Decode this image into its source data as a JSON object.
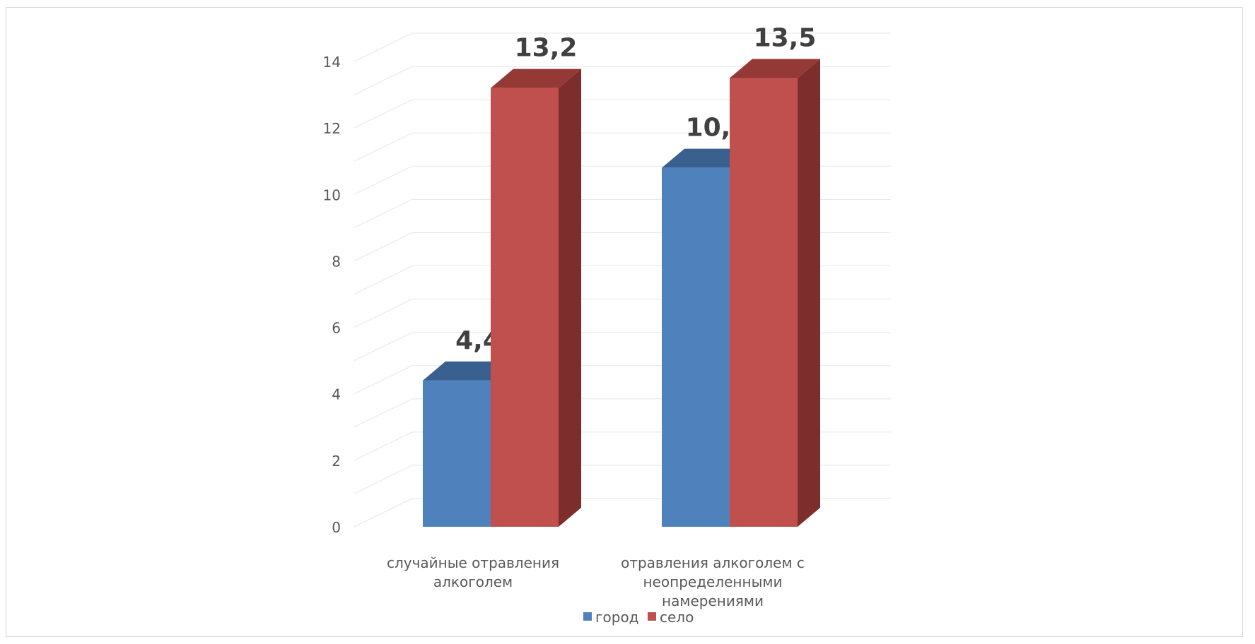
{
  "chart_data": {
    "type": "bar",
    "title": "",
    "xlabel": "",
    "ylabel": "",
    "ylim": [
      0,
      14
    ],
    "yticks": [
      0,
      2,
      4,
      6,
      8,
      10,
      12,
      14
    ],
    "grid": true,
    "legend_position": "bottom",
    "categories": [
      [
        "случайные отравления",
        "алкоголем"
      ],
      [
        "отравления алкоголем с",
        "неопределенными",
        "намерениями"
      ]
    ],
    "series": [
      {
        "name": "город",
        "values": [
          4.4,
          10.8
        ],
        "labels": [
          "4,4",
          "10,8"
        ],
        "color": "#4f81bd",
        "top_color": "#3a6090"
      },
      {
        "name": "село",
        "values": [
          13.2,
          13.5
        ],
        "labels": [
          "13,2",
          "13,5"
        ],
        "color": "#c0504d",
        "top_color": "#943935",
        "side_color": "#7d2e2c"
      }
    ]
  }
}
